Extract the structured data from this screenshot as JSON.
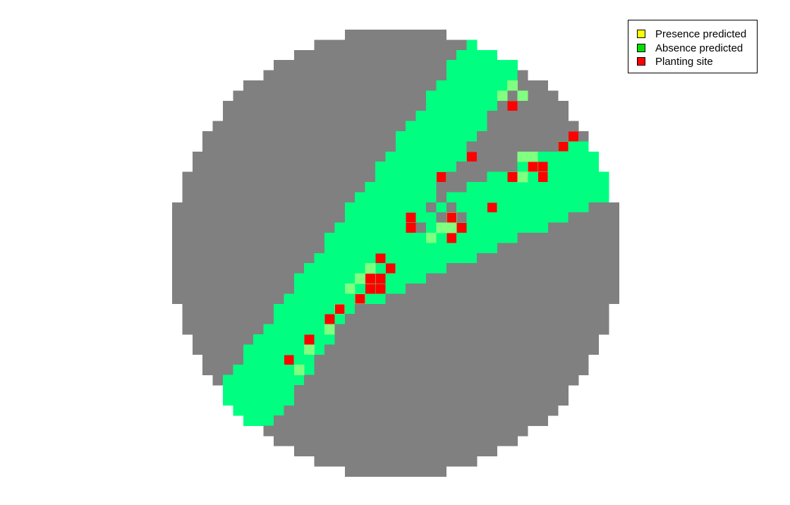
{
  "colors": {
    "background": "#ffffff",
    "outside_habitat": "#808080",
    "habitat": "#00ff80",
    "planting_site": "#ff0000",
    "presence_tint": "#80ff80"
  },
  "legend": [
    {
      "label": "Presence predicted",
      "color": "#ffff00"
    },
    {
      "label": "Absence predicted",
      "color": "#00e000"
    },
    {
      "label": "Planting site",
      "color": "#ff0000"
    }
  ]
}
